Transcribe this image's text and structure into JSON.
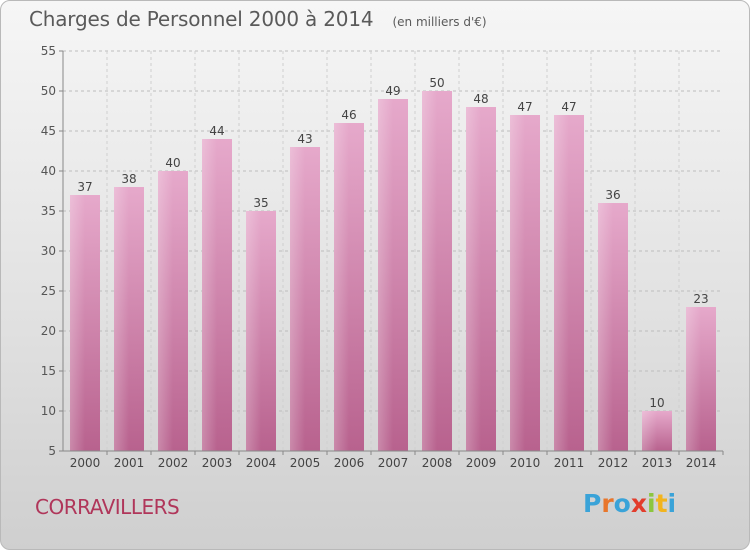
{
  "header": {
    "title": "Charges de Personnel 2000 à 2014",
    "subtitle": "(en milliers d'€)"
  },
  "footer": {
    "commune": "CORRAVILLERS",
    "logo_text": "Proxiti",
    "logo_colors": [
      "#3aa3d8",
      "#e8762b",
      "#3aa3d8",
      "#e23d2c",
      "#8cc63f",
      "#f2b41e",
      "#3aa3d8"
    ]
  },
  "chart_data": {
    "type": "bar",
    "categories": [
      "2000",
      "2001",
      "2002",
      "2003",
      "2004",
      "2005",
      "2006",
      "2007",
      "2008",
      "2009",
      "2010",
      "2011",
      "2012",
      "2013",
      "2014"
    ],
    "values": [
      37,
      38,
      40,
      44,
      35,
      43,
      46,
      49,
      50,
      48,
      47,
      47,
      36,
      10,
      23
    ],
    "ylim": [
      5,
      55
    ],
    "yticks": [
      5,
      10,
      15,
      20,
      25,
      30,
      35,
      40,
      45,
      50,
      55
    ],
    "grid": true,
    "bar_color": "#d67fae"
  }
}
